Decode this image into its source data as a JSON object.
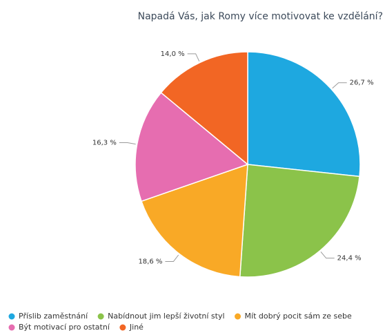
{
  "chart_data": {
    "type": "pie",
    "title": "Napadá Vás, jak Romy více motivovat ke vzdělání?",
    "categories": [
      "Příslib zaměstnání",
      "Nabídnout jim lepší životní styl",
      "Mít dobrý pocit sám ze sebe",
      "Být motivací pro ostatní",
      "Jiné"
    ],
    "values": [
      26.7,
      24.4,
      18.6,
      16.3,
      14.0
    ],
    "value_labels": [
      "26,7 %",
      "24,4 %",
      "18,6 %",
      "16,3 %",
      "14,0 %"
    ],
    "colors": [
      "#1ea8e0",
      "#8bc34a",
      "#f9a926",
      "#e66db0",
      "#f26624"
    ],
    "legend": "bottom"
  }
}
